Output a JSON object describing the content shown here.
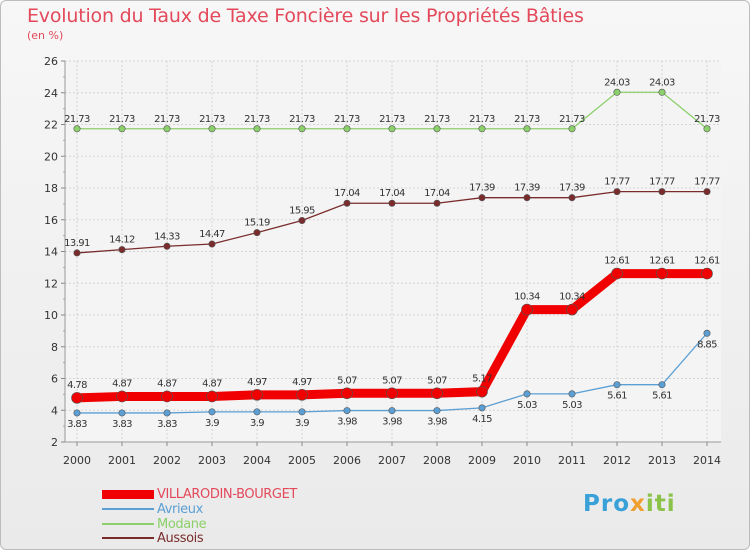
{
  "chart_data": {
    "type": "line",
    "title": "Evolution du Taux de Taxe Foncière sur les Propriétés Bâties",
    "subtitle": "(en %)",
    "categories": [
      "2000",
      "2001",
      "2002",
      "2003",
      "2004",
      "2005",
      "2006",
      "2007",
      "2008",
      "2009",
      "2010",
      "2011",
      "2012",
      "2013",
      "2014"
    ],
    "ylim": [
      2,
      26
    ],
    "yticks": [
      2,
      4,
      6,
      8,
      10,
      12,
      14,
      16,
      18,
      20,
      22,
      24,
      26
    ],
    "grid": true,
    "series": [
      {
        "name": "Avrieux",
        "color": "#5b9fd4",
        "width": 1.3,
        "labelPos": "below",
        "values": [
          3.83,
          3.83,
          3.83,
          3.9,
          3.9,
          3.9,
          3.98,
          3.98,
          3.98,
          4.15,
          5.03,
          5.03,
          5.61,
          5.61,
          8.85
        ],
        "labels": [
          "3.83",
          "3.83",
          "3.83",
          "3.9",
          "3.9",
          "3.9",
          "3.98",
          "3.98",
          "3.98",
          "4.15",
          "5.03",
          "5.03",
          "5.61",
          "5.61",
          "8.85"
        ]
      },
      {
        "name": "Modane",
        "color": "#8cd06b",
        "width": 1.3,
        "labelPos": "above",
        "values": [
          21.73,
          21.73,
          21.73,
          21.73,
          21.73,
          21.73,
          21.73,
          21.73,
          21.73,
          21.73,
          21.73,
          21.73,
          24.03,
          24.03,
          21.73
        ],
        "labels": [
          "21.73",
          "21.73",
          "21.73",
          "21.73",
          "21.73",
          "21.73",
          "21.73",
          "21.73",
          "21.73",
          "21.73",
          "21.73",
          "21.73",
          "24.03",
          "24.03",
          "21.73"
        ]
      },
      {
        "name": "Aussois",
        "color": "#7a2c2c",
        "width": 1.3,
        "labelPos": "above",
        "values": [
          13.91,
          14.12,
          14.33,
          14.47,
          15.19,
          15.95,
          17.04,
          17.04,
          17.04,
          17.39,
          17.39,
          17.39,
          17.77,
          17.77,
          17.77
        ],
        "labels": [
          "13.91",
          "14.12",
          "14.33",
          "14.47",
          "15.19",
          "15.95",
          "17.04",
          "17.04",
          "17.04",
          "17.39",
          "17.39",
          "17.39",
          "17.77",
          "17.77",
          "17.77"
        ]
      },
      {
        "name": "VILLARODIN-BOURGET",
        "color": "#f00000",
        "width": 9,
        "labelPos": "above",
        "values": [
          4.78,
          4.87,
          4.87,
          4.87,
          4.97,
          4.97,
          5.07,
          5.07,
          5.07,
          5.17,
          10.34,
          10.34,
          12.61,
          12.61,
          12.61
        ],
        "labels": [
          "4.78",
          "4.87",
          "4.87",
          "4.87",
          "4.97",
          "4.97",
          "5.07",
          "5.07",
          "5.07",
          "5.17",
          "10.34",
          "10.34",
          "12.61",
          "12.61",
          "12.61"
        ]
      }
    ],
    "legend": [
      {
        "name": "VILLARODIN-BOURGET",
        "color": "#f00000",
        "thickness": 9
      },
      {
        "name": "Avrieux",
        "color": "#5b9fd4",
        "thickness": 2
      },
      {
        "name": "Modane",
        "color": "#8cd06b",
        "thickness": 2
      },
      {
        "name": "Aussois",
        "color": "#7a2c2c",
        "thickness": 2
      }
    ]
  },
  "logo": {
    "part1": "Pro",
    "part2": "x",
    "part3": "iti"
  }
}
